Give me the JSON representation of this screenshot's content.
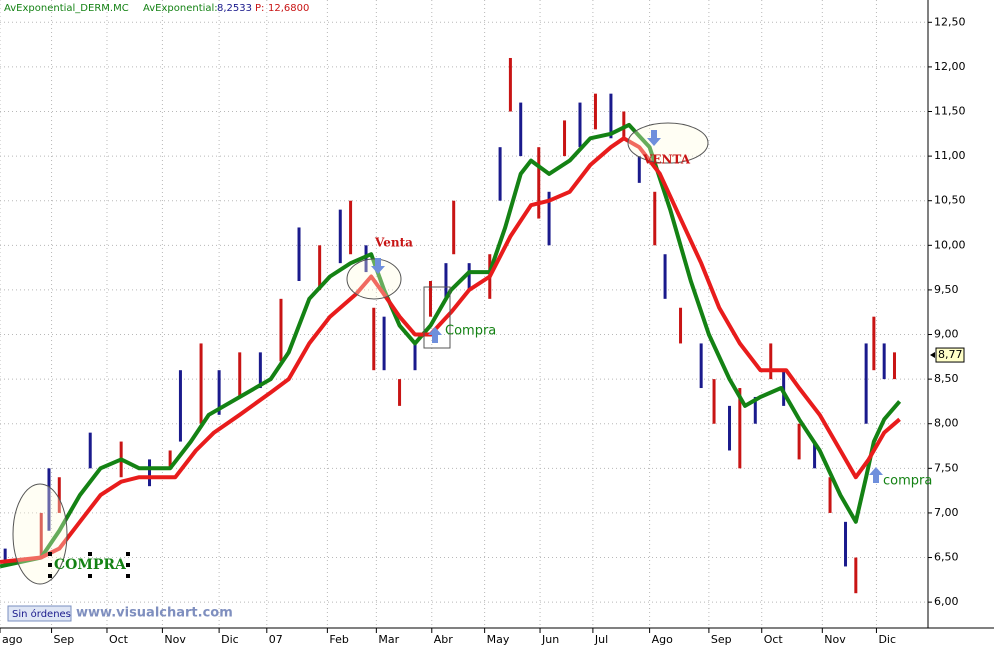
{
  "chart_data": {
    "type": "price-bars",
    "header": {
      "name": "AvExponential_DERM.MC",
      "indicator": "AvExponential:",
      "indicator_value": "8,2533",
      "price_label": "P:",
      "price_value": "12,6800"
    },
    "annotations": [
      "COMPRA",
      "Venta",
      "Compra",
      "VENTA",
      "compra"
    ],
    "status": "Sin órdenes",
    "watermark": "www.visualchart.com",
    "last_price": {
      "value": 8.77,
      "label": "8,77"
    },
    "xlim": [
      0,
      360
    ],
    "ylim": [
      5.71,
      12.75
    ],
    "xticks": [
      {
        "value": 0,
        "label": "ago"
      },
      {
        "value": 20,
        "label": "Sep"
      },
      {
        "value": 41.5,
        "label": "Oct"
      },
      {
        "value": 63,
        "label": "Nov"
      },
      {
        "value": 85,
        "label": "Dic"
      },
      {
        "value": 103.5,
        "label": "07"
      },
      {
        "value": 127,
        "label": "Feb"
      },
      {
        "value": 146,
        "label": "Mar"
      },
      {
        "value": 167.5,
        "label": "Abr"
      },
      {
        "value": 188,
        "label": "May"
      },
      {
        "value": 209.5,
        "label": "Jun"
      },
      {
        "value": 230,
        "label": "Jul"
      },
      {
        "value": 252,
        "label": "Ago"
      },
      {
        "value": 275,
        "label": "Sep"
      },
      {
        "value": 295.5,
        "label": "Oct"
      },
      {
        "value": 319,
        "label": "Nov"
      },
      {
        "value": 340,
        "label": "Dic"
      }
    ],
    "yticks": [
      {
        "value": 6,
        "label": "6,00"
      },
      {
        "value": 6.5,
        "label": "6,50"
      },
      {
        "value": 7,
        "label": "7,00"
      },
      {
        "value": 7.5,
        "label": "7,50"
      },
      {
        "value": 8,
        "label": "8,00"
      },
      {
        "value": 8.5,
        "label": "8,50"
      },
      {
        "value": 9,
        "label": "9,00"
      },
      {
        "value": 9.5,
        "label": "9,50"
      },
      {
        "value": 10,
        "label": "10,00"
      },
      {
        "value": 10.5,
        "label": "10,50"
      },
      {
        "value": 11,
        "label": "11,00"
      },
      {
        "value": 11.5,
        "label": "11,50"
      },
      {
        "value": 12,
        "label": "12,00"
      },
      {
        "value": 12.5,
        "label": "12,50"
      }
    ],
    "grid": true,
    "prices": {
      "color": "#1a1a8c",
      "x": [
        2,
        16,
        19,
        23,
        35,
        47,
        58,
        66,
        70,
        78,
        85,
        93,
        101,
        109,
        116,
        124,
        132,
        136,
        142,
        145,
        149,
        155,
        161,
        167,
        173,
        176,
        182,
        190,
        194,
        198,
        202,
        209,
        213,
        219,
        225,
        231,
        237,
        242,
        248,
        254,
        258,
        264,
        272,
        277,
        283,
        287,
        293,
        299,
        304,
        310,
        316,
        322,
        328,
        332,
        336,
        339,
        343,
        347
      ],
      "high": [
        6.6,
        7.0,
        7.5,
        7.4,
        7.9,
        7.8,
        7.6,
        7.7,
        8.6,
        8.9,
        8.6,
        8.8,
        8.8,
        9.4,
        10.2,
        10.0,
        10.4,
        10.5,
        10.0,
        9.3,
        9.2,
        8.5,
        8.9,
        9.6,
        9.8,
        10.5,
        9.8,
        9.9,
        11.1,
        12.1,
        11.6,
        11.1,
        10.6,
        11.4,
        11.6,
        11.7,
        11.7,
        11.5,
        11.0,
        10.6,
        9.9,
        9.3,
        8.9,
        8.5,
        8.2,
        8.4,
        8.3,
        8.9,
        8.6,
        8.0,
        7.8,
        7.4,
        6.9,
        6.5,
        8.9,
        9.2,
        8.9,
        8.8
      ],
      "low": [
        6.4,
        6.5,
        6.8,
        7.0,
        7.5,
        7.4,
        7.3,
        7.5,
        7.8,
        8.0,
        8.1,
        8.3,
        8.4,
        8.7,
        9.6,
        9.5,
        9.8,
        9.9,
        9.7,
        8.6,
        8.6,
        8.2,
        8.6,
        9.2,
        9.4,
        9.9,
        9.5,
        9.4,
        10.5,
        11.5,
        11.0,
        10.3,
        10.0,
        11.0,
        11.1,
        11.3,
        11.2,
        11.2,
        10.7,
        10.0,
        9.4,
        8.9,
        8.4,
        8.0,
        7.7,
        7.5,
        8.0,
        8.5,
        8.2,
        7.6,
        7.5,
        7.0,
        6.4,
        6.1,
        8.0,
        8.6,
        8.5,
        8.5
      ]
    },
    "series": [
      {
        "color": "#148214",
        "x": [
          0,
          16,
          23,
          31,
          39,
          47,
          54,
          66,
          74,
          81,
          93,
          105,
          112,
          120,
          128,
          136,
          144,
          149,
          155,
          161,
          167,
          175,
          182,
          190,
          196,
          202,
          206,
          213,
          221,
          229,
          237,
          244,
          252,
          260,
          268,
          275,
          283,
          289,
          295,
          303,
          310,
          318,
          326,
          332,
          336,
          339,
          343,
          349
        ],
        "values": [
          6.4,
          6.5,
          6.8,
          7.2,
          7.5,
          7.6,
          7.5,
          7.5,
          7.8,
          8.1,
          8.3,
          8.5,
          8.8,
          9.4,
          9.65,
          9.8,
          9.9,
          9.5,
          9.1,
          8.9,
          9.1,
          9.5,
          9.7,
          9.7,
          10.2,
          10.8,
          10.95,
          10.8,
          10.95,
          11.2,
          11.25,
          11.35,
          11.1,
          10.4,
          9.6,
          9.0,
          8.5,
          8.2,
          8.3,
          8.4,
          8.05,
          7.7,
          7.2,
          6.9,
          7.4,
          7.8,
          8.05,
          8.25
        ]
      },
      {
        "color": "#e81c1c",
        "x": [
          0,
          16,
          23,
          31,
          39,
          47,
          54,
          68,
          76,
          83,
          93,
          105,
          112,
          120,
          128,
          138,
          144,
          149,
          155,
          161,
          167,
          175,
          182,
          190,
          198,
          206,
          213,
          221,
          229,
          237,
          242,
          248,
          256,
          264,
          272,
          279,
          287,
          295,
          305,
          310,
          318,
          326,
          332,
          337,
          343,
          349
        ],
        "values": [
          6.45,
          6.5,
          6.6,
          6.9,
          7.2,
          7.35,
          7.4,
          7.4,
          7.7,
          7.9,
          8.1,
          8.35,
          8.5,
          8.9,
          9.2,
          9.45,
          9.65,
          9.45,
          9.2,
          9.0,
          9.0,
          9.25,
          9.5,
          9.65,
          10.1,
          10.45,
          10.5,
          10.6,
          10.9,
          11.1,
          11.2,
          11.1,
          10.8,
          10.3,
          9.8,
          9.3,
          8.9,
          8.6,
          8.6,
          8.4,
          8.1,
          7.7,
          7.4,
          7.6,
          7.9,
          8.05
        ]
      }
    ]
  }
}
